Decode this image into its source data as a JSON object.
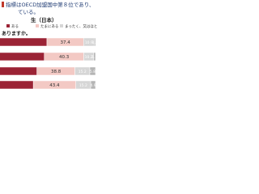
{
  "chart_data": {
    "type": "stacked-bar-horizontal",
    "title": "指標はOECD加盟国中第８位であり、",
    "subtitle_line": "ている。",
    "group_label": "生（日本）",
    "question": "ありますか。",
    "categories": [
      null,
      null,
      null,
      null
    ],
    "xlim": [
      0,
      100
    ],
    "series": [
      {
        "name": "ある",
        "color": "#9b2335",
        "values": [
          50.4,
          47.7,
          40.2,
          36.5
        ]
      },
      {
        "name": "たまにある",
        "color": "#f3c9c4",
        "values": [
          37.4,
          40.3,
          38.8,
          43.4
        ]
      },
      {
        "name": "まったく、又はほとんどない",
        "color": "#d6d6d6",
        "values": [
          10.9,
          10.2,
          15.2,
          15.2
        ]
      },
      {
        "name": "",
        "color": "#b5b5b5",
        "values": [
          1.3,
          1.8,
          5.8,
          4.9
        ]
      }
    ]
  }
}
